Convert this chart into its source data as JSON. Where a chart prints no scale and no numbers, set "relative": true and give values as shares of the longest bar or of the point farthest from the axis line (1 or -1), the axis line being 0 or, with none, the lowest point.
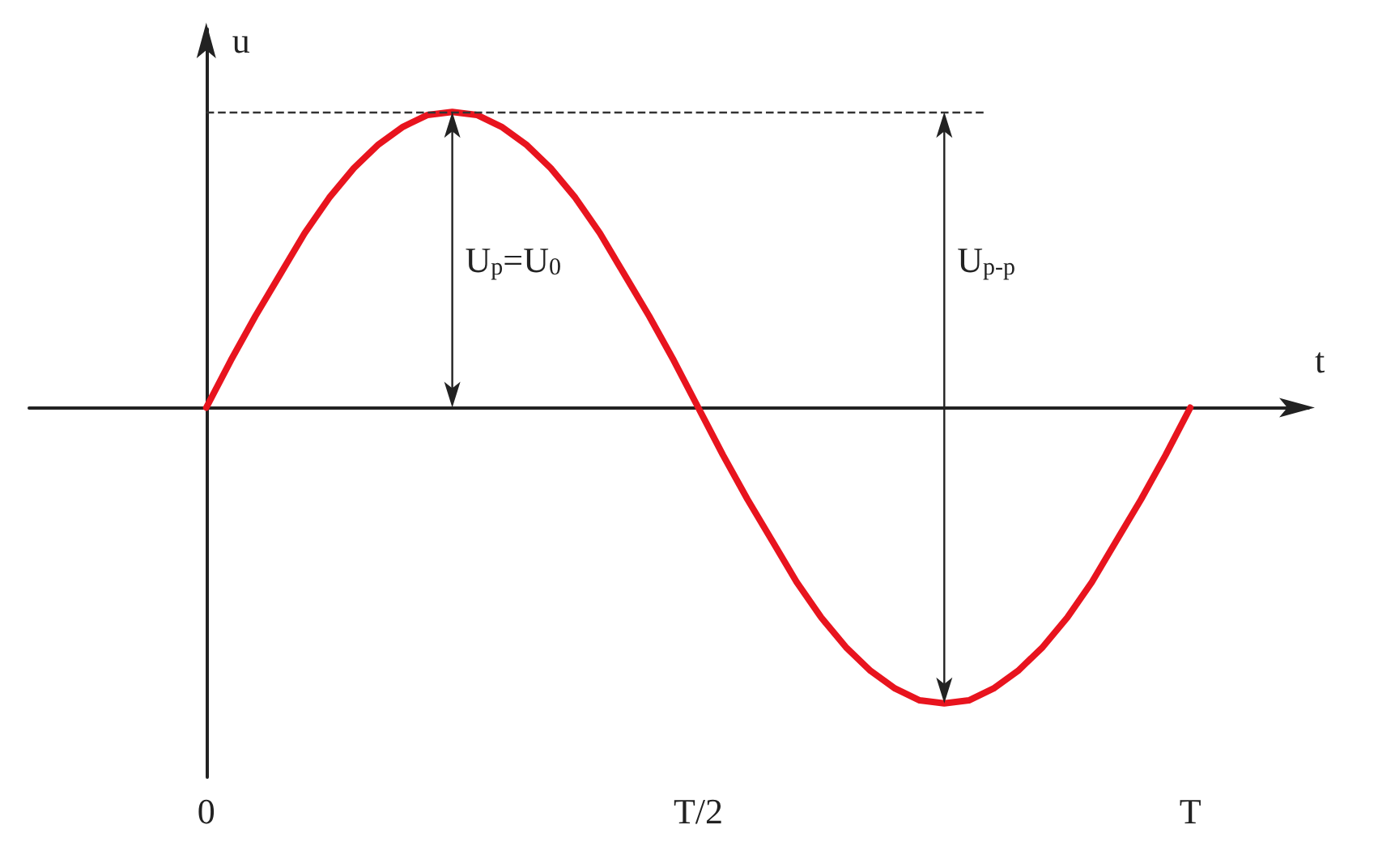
{
  "chart_data": {
    "type": "line",
    "relative": true,
    "xlabel": "t",
    "ylabel": "u",
    "categories": [
      "0",
      null,
      null,
      null,
      null,
      null,
      null,
      null,
      null,
      null,
      null,
      null,
      null,
      null,
      null,
      null,
      null,
      null,
      null,
      null,
      "T/2",
      null,
      null,
      null,
      null,
      null,
      null,
      null,
      null,
      null,
      null,
      null,
      null,
      null,
      null,
      null,
      null,
      null,
      null,
      null,
      "T"
    ],
    "series": [
      {
        "color": "#e8141e",
        "values": [
          0,
          0.16,
          0.31,
          0.45,
          0.59,
          0.71,
          0.81,
          0.89,
          0.95,
          0.99,
          1,
          0.99,
          0.95,
          0.89,
          0.81,
          0.71,
          0.59,
          0.45,
          0.31,
          0.16,
          0,
          -0.16,
          -0.31,
          -0.45,
          -0.59,
          -0.71,
          -0.81,
          -0.89,
          -0.95,
          -0.99,
          -1,
          -0.99,
          -0.95,
          -0.89,
          -0.81,
          -0.71,
          -0.59,
          -0.45,
          -0.31,
          -0.16,
          0
        ]
      }
    ],
    "tick_labels": "x",
    "grid": false,
    "marker": "none",
    "line_style": "solid",
    "ref_lines": [
      {
        "axis": "y",
        "value": 1,
        "line_style": "dashed",
        "color": "#333333"
      }
    ],
    "annotations": [
      "U$_{p}$=U$_{0}$",
      "U$_{p-p}$"
    ]
  }
}
